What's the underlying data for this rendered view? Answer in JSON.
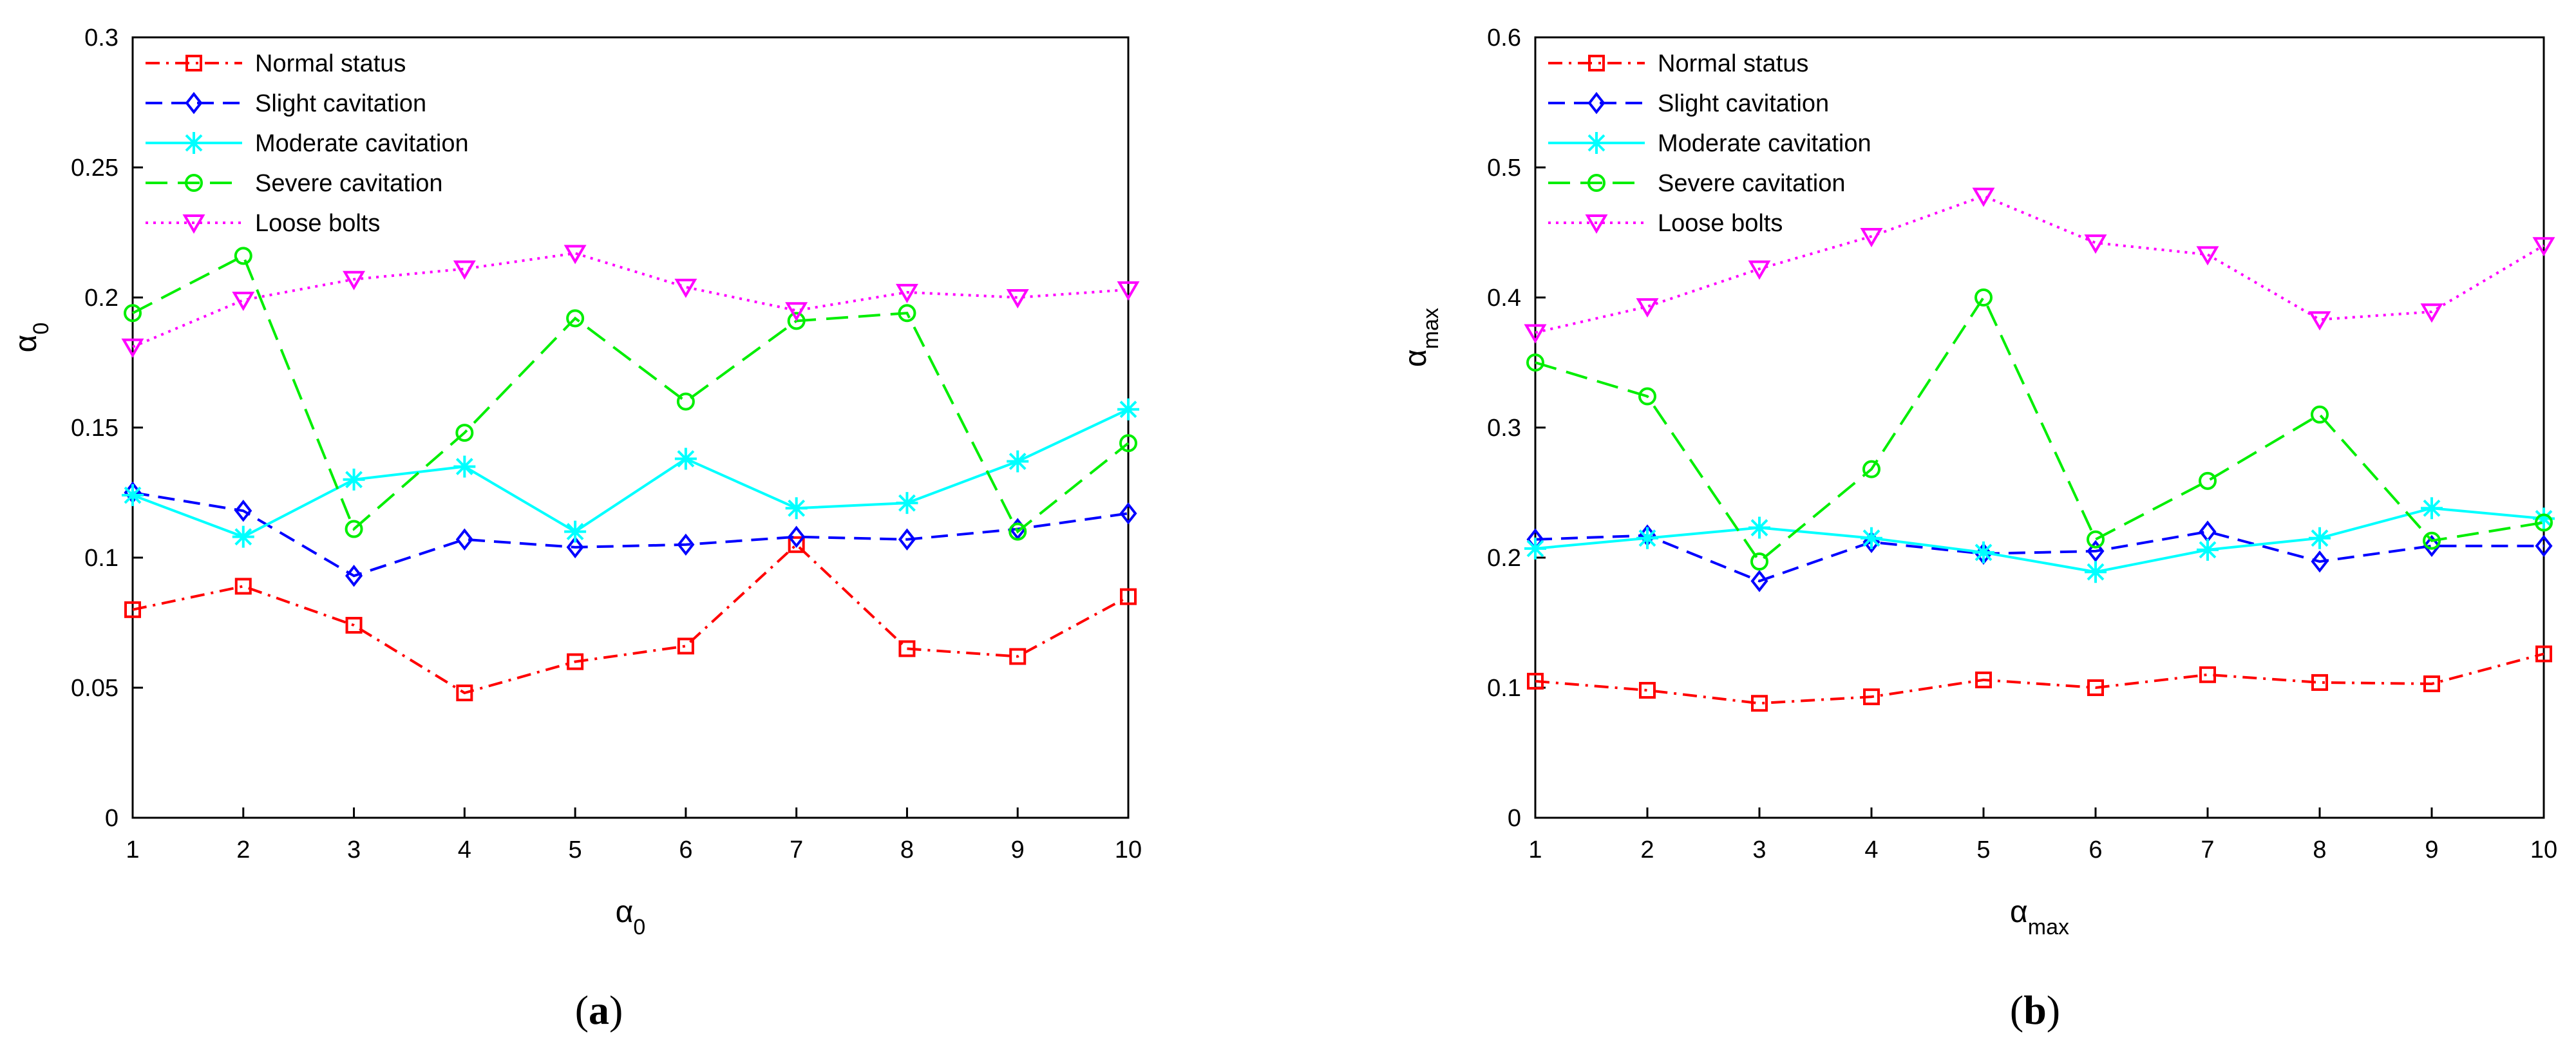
{
  "chart_data": [
    {
      "type": "line",
      "panel_label": "a",
      "xlabel": "α",
      "xlabel_sub": "0",
      "ylabel": "α",
      "ylabel_sub": "0",
      "x": [
        1,
        2,
        3,
        4,
        5,
        6,
        7,
        8,
        9,
        10
      ],
      "xlim": [
        1,
        10
      ],
      "ylim": [
        0,
        0.3
      ],
      "xticks": [
        "1",
        "2",
        "3",
        "4",
        "5",
        "6",
        "7",
        "8",
        "9",
        "10"
      ],
      "yticks": [
        {
          "v": 0,
          "label": "0"
        },
        {
          "v": 0.05,
          "label": "0.05"
        },
        {
          "v": 0.1,
          "label": "0.1"
        },
        {
          "v": 0.15,
          "label": "0.15"
        },
        {
          "v": 0.2,
          "label": "0.2"
        },
        {
          "v": 0.25,
          "label": "0.25"
        },
        {
          "v": 0.3,
          "label": "0.3"
        }
      ],
      "grid": false,
      "legend_position": "top-left",
      "series": [
        {
          "name": "Normal status",
          "color": "#ff0000",
          "dash": "dashdot",
          "marker": "square",
          "values": [
            0.08,
            0.089,
            0.074,
            0.048,
            0.06,
            0.066,
            0.105,
            0.065,
            0.062,
            0.085
          ]
        },
        {
          "name": "Slight cavitation",
          "color": "#0000ff",
          "dash": "dash",
          "marker": "diamond",
          "values": [
            0.125,
            0.118,
            0.093,
            0.107,
            0.104,
            0.105,
            0.108,
            0.107,
            0.111,
            0.117
          ]
        },
        {
          "name": "Moderate cavitation",
          "color": "#00ffff",
          "dash": "solid",
          "marker": "star",
          "values": [
            0.124,
            0.108,
            0.13,
            0.135,
            0.11,
            0.138,
            0.119,
            0.121,
            0.137,
            0.157
          ]
        },
        {
          "name": "Severe cavitation",
          "color": "#00ee00",
          "dash": "longdash",
          "marker": "circle",
          "values": [
            0.194,
            0.216,
            0.111,
            0.148,
            0.192,
            0.16,
            0.191,
            0.194,
            0.11,
            0.144
          ]
        },
        {
          "name": "Loose bolts",
          "color": "#ff00ff",
          "dash": "dot",
          "marker": "triangle-down",
          "values": [
            0.181,
            0.199,
            0.207,
            0.211,
            0.217,
            0.204,
            0.195,
            0.202,
            0.2,
            0.203
          ]
        }
      ]
    },
    {
      "type": "line",
      "panel_label": "b",
      "xlabel": "α",
      "xlabel_sub": "max",
      "ylabel": "α",
      "ylabel_sub": "max",
      "x": [
        1,
        2,
        3,
        4,
        5,
        6,
        7,
        8,
        9,
        10
      ],
      "xlim": [
        1,
        10
      ],
      "ylim": [
        0,
        0.6
      ],
      "xticks": [
        "1",
        "2",
        "3",
        "4",
        "5",
        "6",
        "7",
        "8",
        "9",
        "10"
      ],
      "yticks": [
        {
          "v": 0,
          "label": "0"
        },
        {
          "v": 0.1,
          "label": "0.1"
        },
        {
          "v": 0.2,
          "label": "0.2"
        },
        {
          "v": 0.3,
          "label": "0.3"
        },
        {
          "v": 0.4,
          "label": "0.4"
        },
        {
          "v": 0.5,
          "label": "0.5"
        },
        {
          "v": 0.6,
          "label": "0.6"
        }
      ],
      "grid": false,
      "legend_position": "top-left",
      "series": [
        {
          "name": "Normal status",
          "color": "#ff0000",
          "dash": "dashdot",
          "marker": "square",
          "values": [
            0.105,
            0.098,
            0.088,
            0.093,
            0.106,
            0.1,
            0.11,
            0.104,
            0.103,
            0.126
          ]
        },
        {
          "name": "Slight cavitation",
          "color": "#0000ff",
          "dash": "dash",
          "marker": "diamond",
          "values": [
            0.214,
            0.217,
            0.182,
            0.212,
            0.203,
            0.205,
            0.22,
            0.197,
            0.209,
            0.209
          ]
        },
        {
          "name": "Moderate cavitation",
          "color": "#00ffff",
          "dash": "solid",
          "marker": "star",
          "values": [
            0.207,
            0.215,
            0.223,
            0.215,
            0.204,
            0.189,
            0.206,
            0.215,
            0.238,
            0.23
          ]
        },
        {
          "name": "Severe cavitation",
          "color": "#00ee00",
          "dash": "longdash",
          "marker": "circle",
          "values": [
            0.35,
            0.324,
            0.197,
            0.268,
            0.4,
            0.214,
            0.259,
            0.31,
            0.213,
            0.227
          ]
        },
        {
          "name": "Loose bolts",
          "color": "#ff00ff",
          "dash": "dot",
          "marker": "triangle-down",
          "values": [
            0.373,
            0.393,
            0.422,
            0.447,
            0.478,
            0.442,
            0.433,
            0.383,
            0.389,
            0.44
          ]
        }
      ]
    }
  ]
}
